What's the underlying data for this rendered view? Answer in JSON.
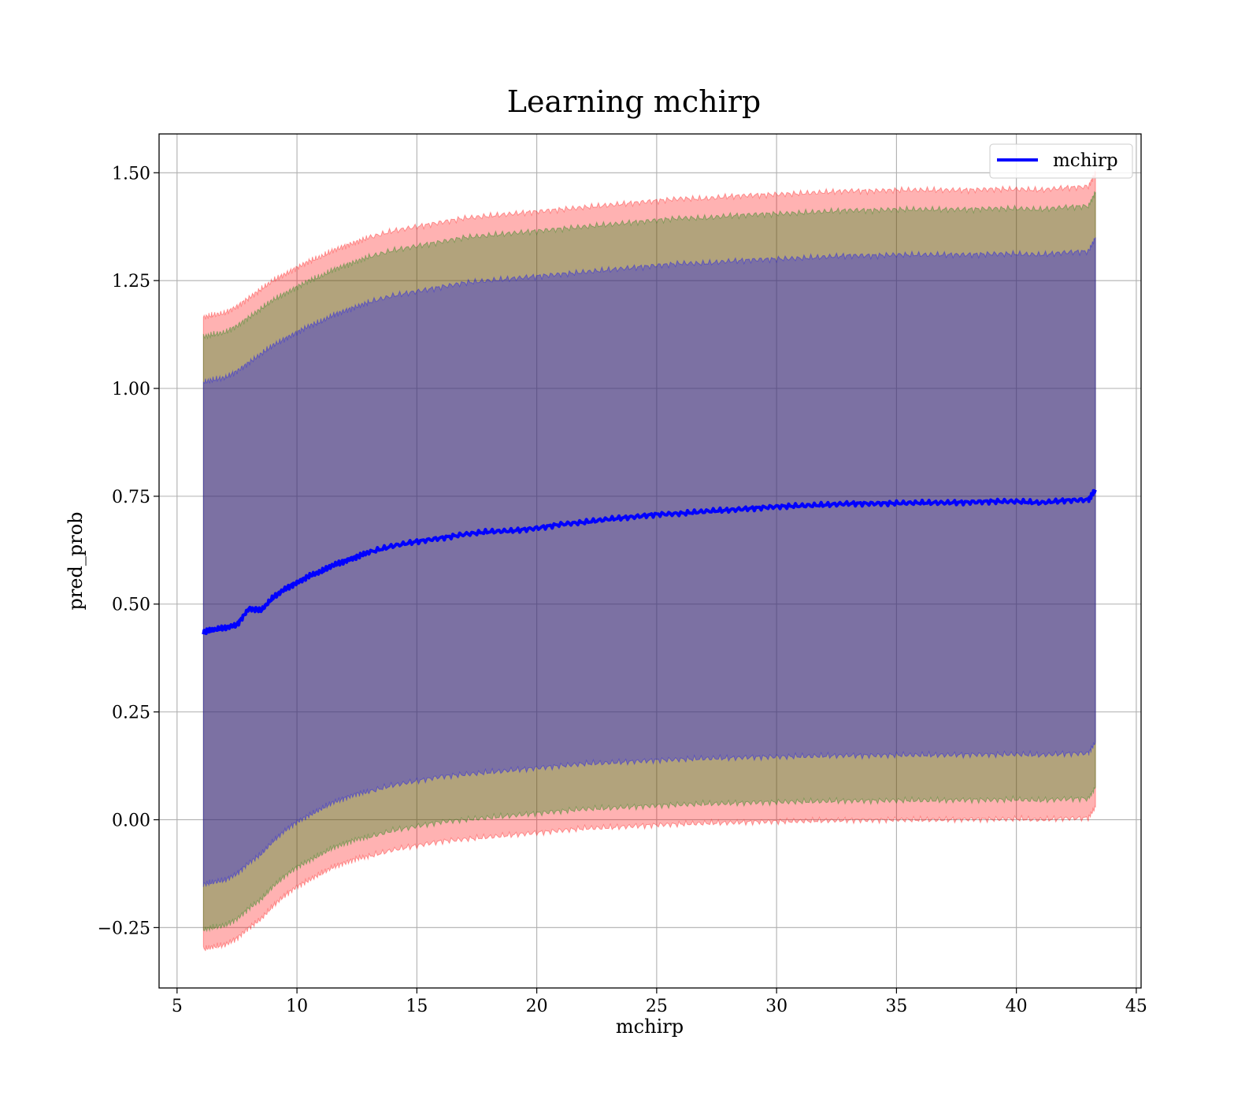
{
  "chart_data": {
    "type": "line",
    "title": "Learning mchirp",
    "xlabel": "mchirp",
    "ylabel": "pred_prob",
    "xlim": [
      4.25,
      45.2
    ],
    "ylim": [
      -0.39,
      1.59
    ],
    "xticks": [
      5,
      10,
      15,
      20,
      25,
      30,
      35,
      40,
      45
    ],
    "yticks": [
      -0.25,
      0.0,
      0.25,
      0.5,
      0.75,
      1.0,
      1.25,
      1.5
    ],
    "ytick_labels": [
      "−0.25",
      "0.00",
      "0.25",
      "0.50",
      "0.75",
      "1.00",
      "1.25",
      "1.50"
    ],
    "grid": true,
    "legend_position": "top-right",
    "legend": [
      "mchirp"
    ],
    "series": [
      {
        "name": "mchirp",
        "color": "#0000ff",
        "x": [
          6.1,
          6.5,
          7.0,
          7.5,
          8.0,
          8.5,
          9.0,
          9.5,
          10.0,
          10.5,
          11.0,
          11.5,
          12.0,
          12.5,
          13.0,
          14.0,
          15.0,
          16.0,
          17.0,
          18.0,
          19.0,
          20.0,
          21.0,
          22.0,
          23.0,
          24.0,
          25.0,
          26.0,
          27.0,
          28.0,
          29.0,
          30.0,
          31.0,
          32.0,
          33.0,
          34.0,
          35.0,
          36.0,
          37.0,
          38.0,
          39.0,
          40.0,
          41.0,
          42.0,
          43.0,
          43.3
        ],
        "y": [
          0.435,
          0.44,
          0.445,
          0.452,
          0.49,
          0.485,
          0.515,
          0.535,
          0.55,
          0.565,
          0.575,
          0.59,
          0.6,
          0.61,
          0.62,
          0.635,
          0.645,
          0.653,
          0.662,
          0.668,
          0.67,
          0.676,
          0.685,
          0.69,
          0.697,
          0.702,
          0.708,
          0.71,
          0.715,
          0.718,
          0.722,
          0.726,
          0.728,
          0.73,
          0.733,
          0.733,
          0.734,
          0.735,
          0.735,
          0.736,
          0.738,
          0.738,
          0.735,
          0.74,
          0.742,
          0.765
        ]
      }
    ],
    "bands": [
      {
        "color": "#ff0000",
        "alpha": 0.3,
        "lower": [
          -0.3,
          -0.295,
          -0.29,
          -0.275,
          -0.25,
          -0.23,
          -0.2,
          -0.175,
          -0.155,
          -0.14,
          -0.125,
          -0.11,
          -0.1,
          -0.09,
          -0.085,
          -0.07,
          -0.06,
          -0.05,
          -0.045,
          -0.04,
          -0.035,
          -0.03,
          -0.025,
          -0.02,
          -0.018,
          -0.015,
          -0.012,
          -0.01,
          -0.008,
          -0.007,
          -0.005,
          -0.004,
          -0.003,
          -0.002,
          -0.001,
          -0.001,
          0.0,
          0.0,
          0.0,
          0.001,
          0.001,
          0.002,
          0.0,
          0.003,
          0.004,
          0.03
        ],
        "upper": [
          1.165,
          1.17,
          1.175,
          1.19,
          1.21,
          1.23,
          1.25,
          1.265,
          1.28,
          1.295,
          1.305,
          1.32,
          1.33,
          1.34,
          1.35,
          1.365,
          1.375,
          1.385,
          1.395,
          1.4,
          1.405,
          1.41,
          1.415,
          1.42,
          1.425,
          1.43,
          1.435,
          1.44,
          1.44,
          1.445,
          1.448,
          1.45,
          1.452,
          1.455,
          1.458,
          1.458,
          1.46,
          1.46,
          1.46,
          1.46,
          1.462,
          1.462,
          1.46,
          1.465,
          1.468,
          1.5
        ]
      },
      {
        "color": "#008000",
        "alpha": 0.3,
        "lower": [
          -0.255,
          -0.25,
          -0.245,
          -0.23,
          -0.205,
          -0.185,
          -0.155,
          -0.13,
          -0.11,
          -0.095,
          -0.08,
          -0.065,
          -0.055,
          -0.045,
          -0.04,
          -0.025,
          -0.015,
          -0.005,
          0.0,
          0.005,
          0.01,
          0.015,
          0.02,
          0.025,
          0.027,
          0.03,
          0.033,
          0.035,
          0.037,
          0.038,
          0.04,
          0.041,
          0.042,
          0.043,
          0.044,
          0.044,
          0.045,
          0.045,
          0.045,
          0.046,
          0.046,
          0.047,
          0.045,
          0.048,
          0.049,
          0.075
        ],
        "upper": [
          1.12,
          1.125,
          1.13,
          1.145,
          1.165,
          1.185,
          1.205,
          1.22,
          1.235,
          1.25,
          1.26,
          1.275,
          1.285,
          1.295,
          1.305,
          1.32,
          1.33,
          1.34,
          1.35,
          1.355,
          1.36,
          1.365,
          1.37,
          1.375,
          1.38,
          1.385,
          1.39,
          1.395,
          1.395,
          1.4,
          1.403,
          1.405,
          1.407,
          1.41,
          1.413,
          1.413,
          1.415,
          1.415,
          1.415,
          1.415,
          1.417,
          1.417,
          1.415,
          1.42,
          1.423,
          1.455
        ]
      },
      {
        "color": "#0000ff",
        "alpha": 0.3,
        "lower": [
          -0.15,
          -0.145,
          -0.14,
          -0.125,
          -0.1,
          -0.08,
          -0.05,
          -0.025,
          -0.005,
          0.01,
          0.025,
          0.04,
          0.05,
          0.06,
          0.065,
          0.08,
          0.09,
          0.1,
          0.105,
          0.11,
          0.115,
          0.12,
          0.125,
          0.13,
          0.132,
          0.135,
          0.138,
          0.14,
          0.142,
          0.143,
          0.145,
          0.146,
          0.147,
          0.148,
          0.149,
          0.149,
          0.15,
          0.15,
          0.15,
          0.151,
          0.151,
          0.152,
          0.15,
          0.153,
          0.154,
          0.18
        ],
        "upper": [
          1.015,
          1.02,
          1.025,
          1.04,
          1.06,
          1.08,
          1.1,
          1.115,
          1.13,
          1.145,
          1.155,
          1.17,
          1.18,
          1.19,
          1.2,
          1.215,
          1.225,
          1.235,
          1.245,
          1.25,
          1.255,
          1.26,
          1.265,
          1.27,
          1.275,
          1.28,
          1.285,
          1.29,
          1.29,
          1.295,
          1.298,
          1.3,
          1.302,
          1.305,
          1.308,
          1.308,
          1.31,
          1.31,
          1.31,
          1.31,
          1.312,
          1.312,
          1.31,
          1.315,
          1.318,
          1.35
        ]
      }
    ]
  }
}
